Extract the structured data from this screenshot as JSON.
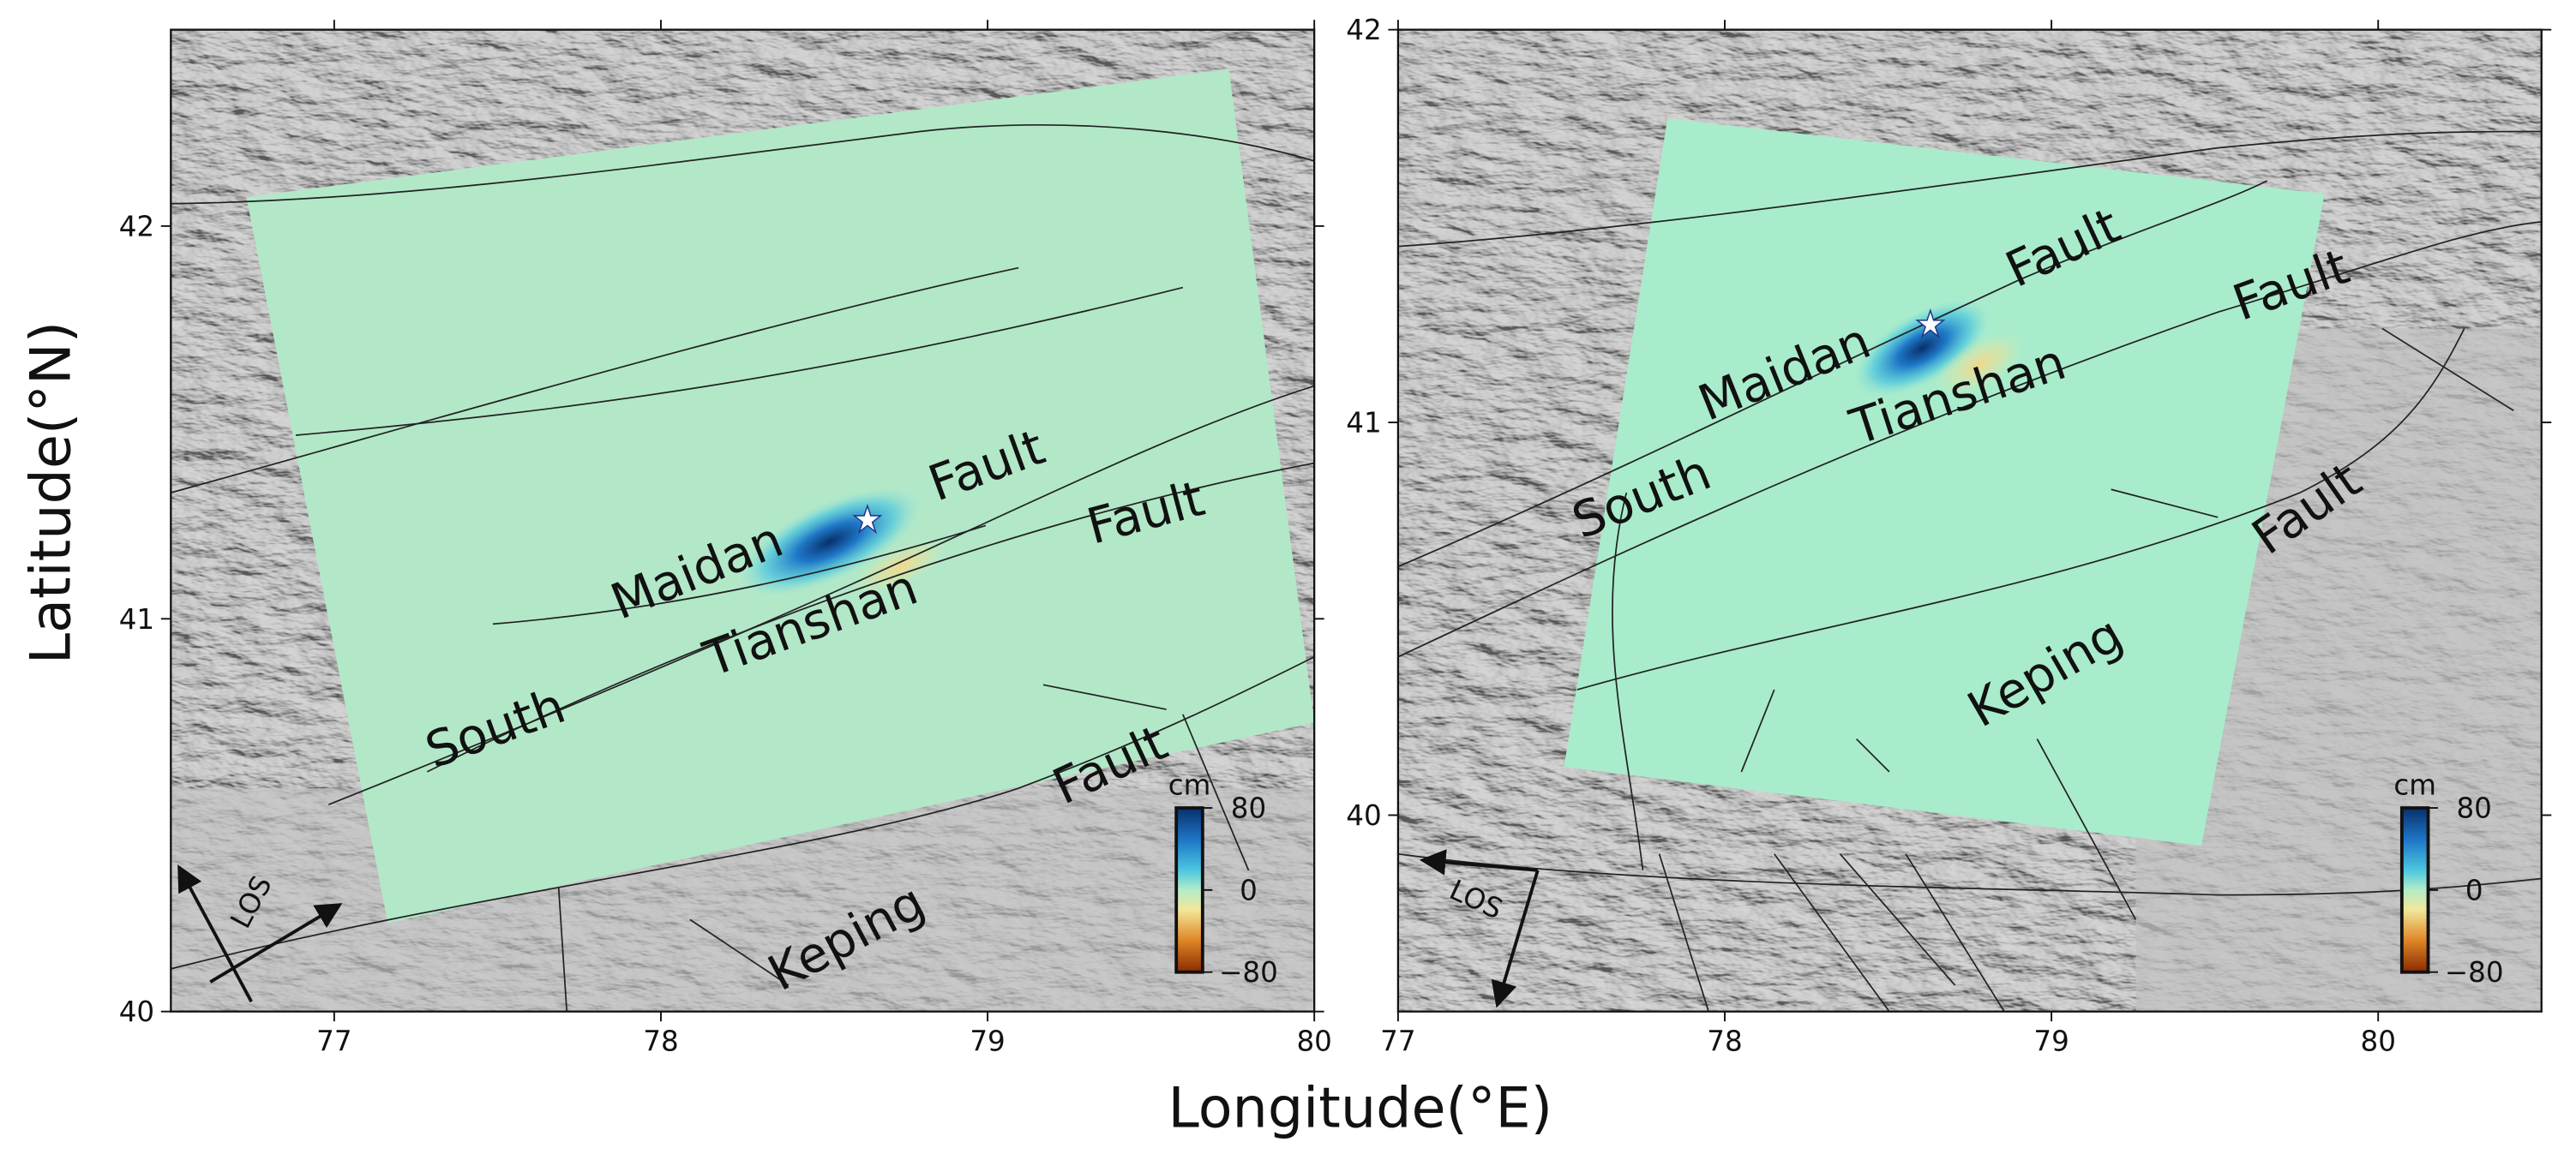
{
  "axes": {
    "x_label": "Longitude(°E)",
    "y_label": "Latitude(°N)"
  },
  "panels": [
    {
      "xlim": [
        76.5,
        80
      ],
      "ylim": [
        40,
        42.5
      ],
      "xticks": [
        77,
        78,
        79,
        80
      ],
      "yticks": [
        40,
        41,
        42
      ],
      "labels": [
        "Maidan",
        "Fault",
        "Tianshan",
        "Fault",
        "South",
        "Fault",
        "Keping"
      ],
      "colorbar": {
        "unit": "cm",
        "lim": [
          -80,
          80
        ],
        "ticks": [
          80,
          0,
          {
            "value": -80,
            "label": "−80"
          }
        ]
      },
      "los": "LOS"
    },
    {
      "xlim": [
        77,
        80.5
      ],
      "ylim": [
        39.5,
        42
      ],
      "xticks": [
        77,
        78,
        79,
        80
      ],
      "yticks": [
        40,
        41,
        42
      ],
      "labels": [
        "Maidan",
        "Fault",
        "Tianshan",
        "Fault",
        "South",
        "Fault",
        "Keping"
      ],
      "colorbar": {
        "unit": "cm",
        "lim": [
          -80,
          80
        ],
        "ticks": [
          80,
          0,
          {
            "value": -80,
            "label": "−80"
          }
        ]
      },
      "los": "LOS"
    }
  ]
}
